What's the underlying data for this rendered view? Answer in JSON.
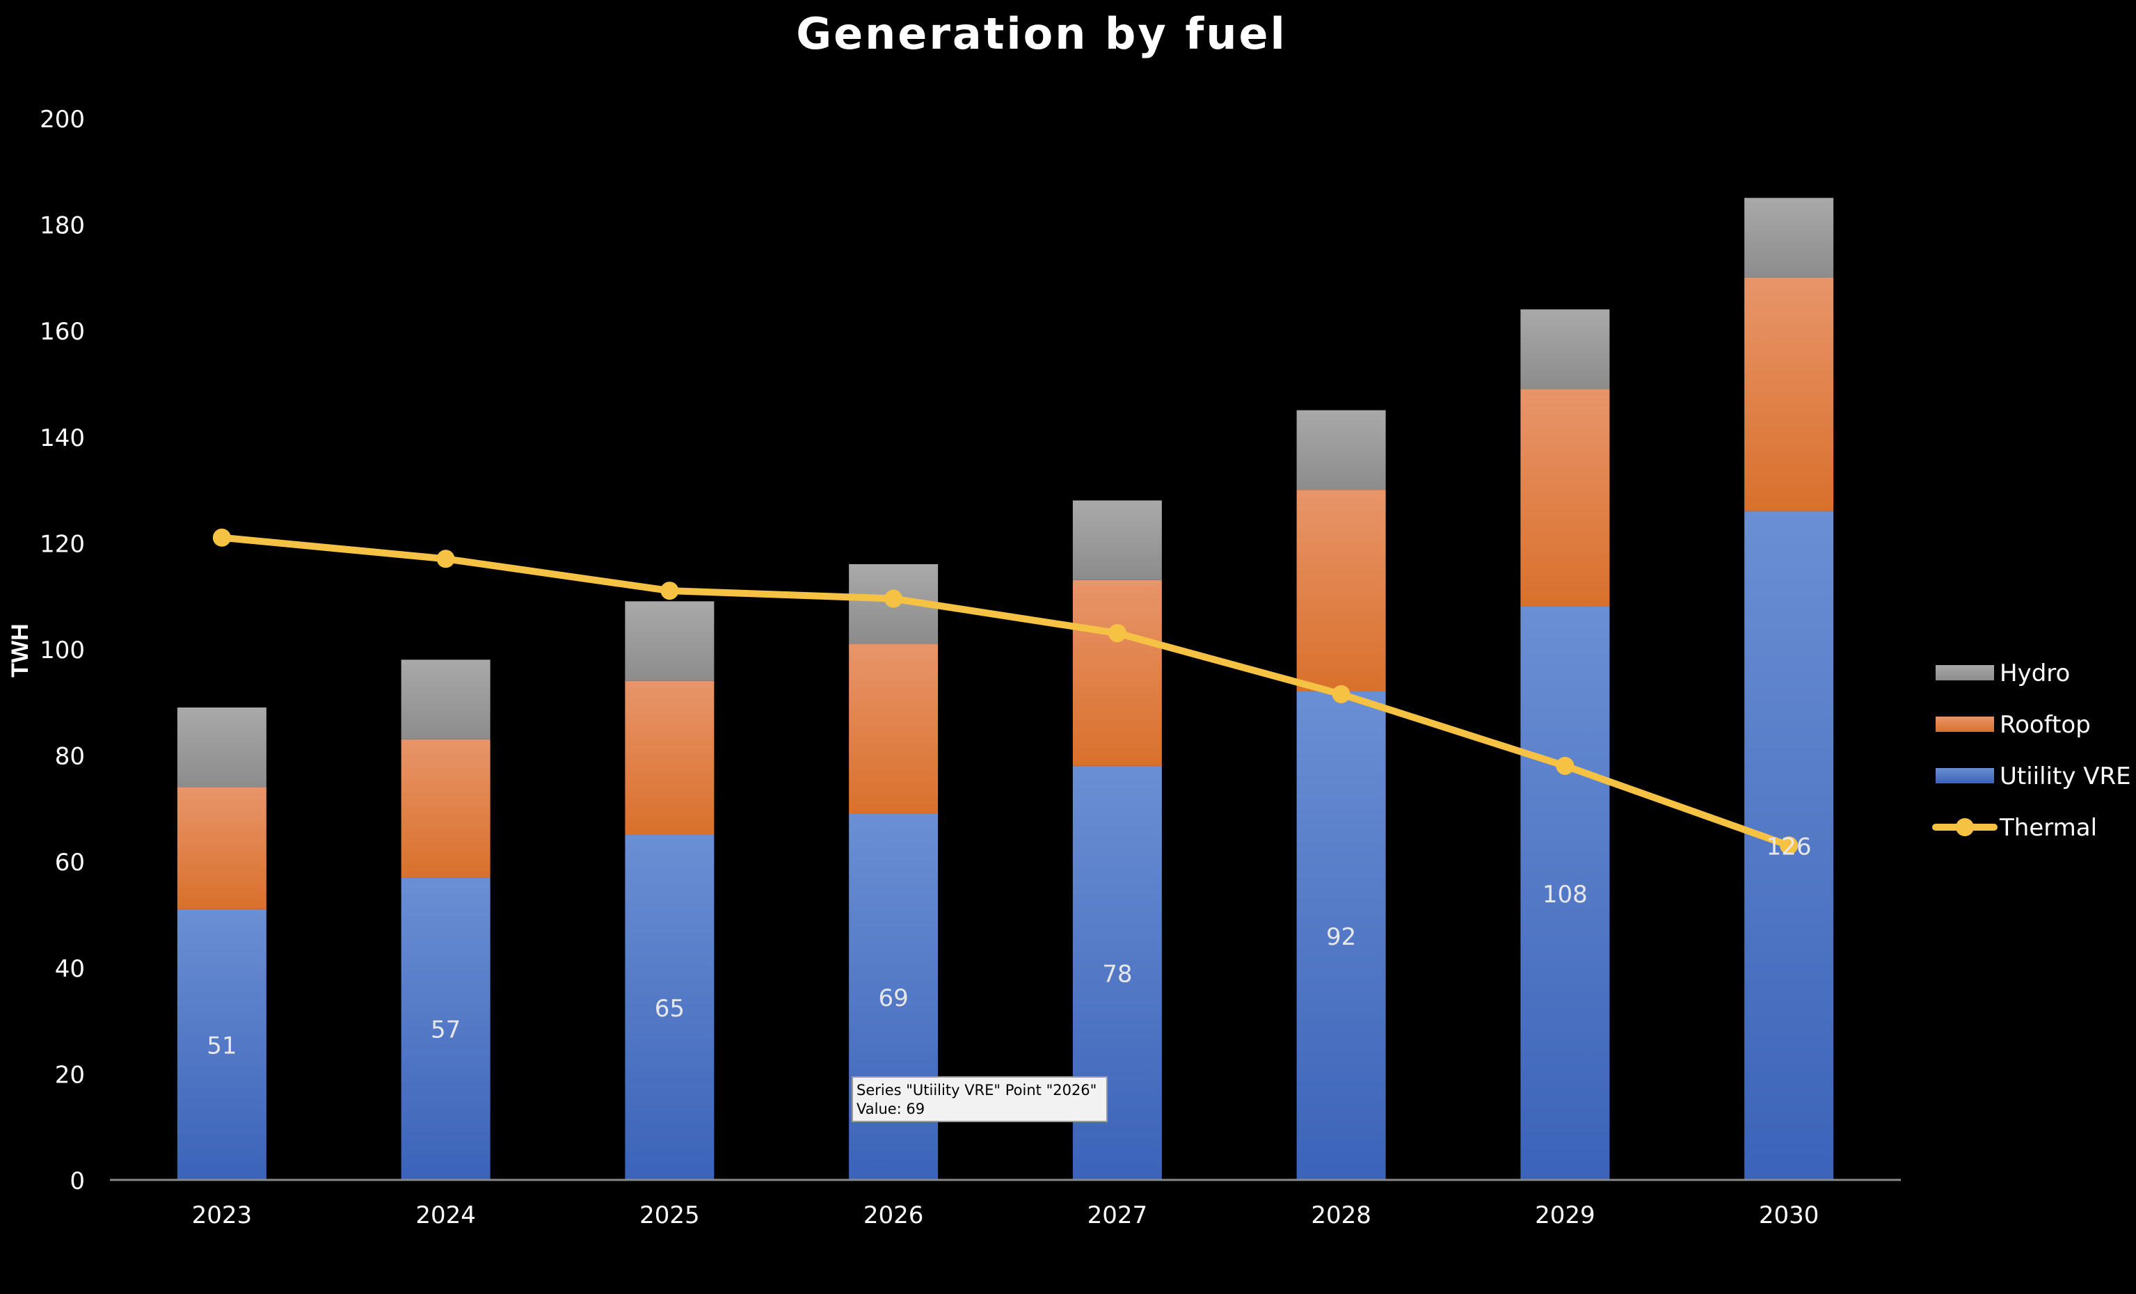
{
  "chart_data": {
    "type": "bar",
    "stacked": true,
    "title": "Generation by fuel",
    "xlabel": "",
    "ylabel": "TWH",
    "ylim": [
      0,
      200
    ],
    "yticks": [
      0,
      20,
      40,
      60,
      80,
      100,
      120,
      140,
      160,
      180,
      200
    ],
    "categories": [
      "2023",
      "2024",
      "2025",
      "2026",
      "2027",
      "2028",
      "2029",
      "2030"
    ],
    "grid": false,
    "legend_position": "right",
    "series": [
      {
        "name": "Utiility VRE",
        "kind": "bar",
        "color": "#4472c4",
        "values": [
          51,
          57,
          65,
          69,
          78,
          92,
          108,
          126
        ],
        "data_labels": true
      },
      {
        "name": "Rooftop",
        "kind": "bar",
        "color": "#ed7d31",
        "values": [
          23,
          26,
          29,
          32,
          35,
          38,
          41,
          44
        ],
        "data_labels": false
      },
      {
        "name": "Hydro",
        "kind": "bar",
        "color": "#a5a5a5",
        "values": [
          15,
          15,
          15,
          15,
          15,
          15,
          15,
          15
        ],
        "data_labels": false
      },
      {
        "name": "Thermal",
        "kind": "line",
        "color": "#f6c244",
        "values": [
          121,
          117,
          111,
          109.5,
          103,
          91.5,
          78,
          63
        ],
        "data_labels": false
      }
    ],
    "legend_order": [
      "Hydro",
      "Rooftop",
      "Utiility VRE",
      "Thermal"
    ],
    "tooltip": {
      "line1": "Series \"Utiility VRE\" Point \"2026\"",
      "line2": "Value: 69",
      "category": "2026",
      "series": "Utiility VRE"
    },
    "colors": {
      "background": "#000000",
      "text": "#ffffff",
      "axis": "#7f7f7f"
    }
  }
}
